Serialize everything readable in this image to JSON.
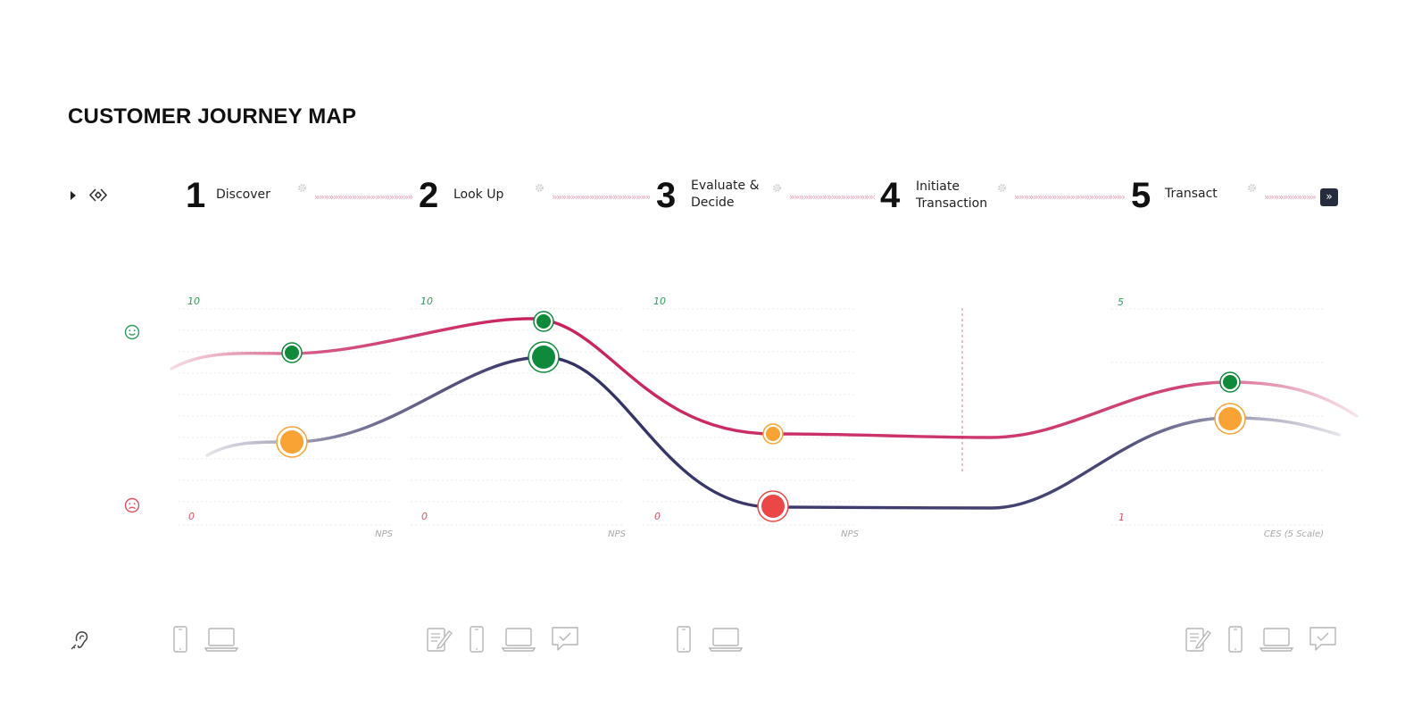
{
  "header": {
    "title": "CUSTOMER JOURNEY MAP"
  },
  "stage_nav": {
    "expand_icon": "play-triangle-icon",
    "link_icon": "link-icon",
    "end_button_label": "»"
  },
  "stages": [
    {
      "number": "1",
      "label": "Discover"
    },
    {
      "number": "2",
      "label": "Look Up"
    },
    {
      "number": "3",
      "label": "Evaluate &\nDecide"
    },
    {
      "number": "4",
      "label": "Initiate\nTransaction"
    },
    {
      "number": "5",
      "label": "Transact"
    }
  ],
  "arrow_separator": "»»»»»»»»»»»»»»»»»»»»»»»»",
  "metric_panels": [
    {
      "max_label": "10",
      "min_label": "0",
      "metric": "NPS"
    },
    {
      "max_label": "10",
      "min_label": "0",
      "metric": "NPS"
    },
    {
      "max_label": "10",
      "min_label": "0",
      "metric": "NPS"
    },
    {
      "max_label": "5",
      "min_label": "1",
      "metric": "CES (5 Scale)"
    }
  ],
  "sentiment": {
    "happy_icon": "smiley-face-icon",
    "sad_icon": "sad-face-icon"
  },
  "colors": {
    "expectation_curve": "#c7215d",
    "experience_curve": "#27265c",
    "point_positive": "#0f8a3a",
    "point_neutral": "#f8a333",
    "point_negative": "#ea4746",
    "tick_high": "#2f9a5a",
    "tick_low": "#e05060",
    "end_button": "#252c3d"
  },
  "channels": {
    "row_icon": "ear-listening-icon",
    "groups": [
      [
        "phone-icon",
        "laptop-icon"
      ],
      [
        "form-icon",
        "phone-icon",
        "laptop-icon",
        "chat-icon"
      ],
      [
        "phone-icon",
        "laptop-icon"
      ],
      [
        "form-icon",
        "phone-icon",
        "laptop-icon",
        "chat-icon"
      ]
    ]
  }
}
